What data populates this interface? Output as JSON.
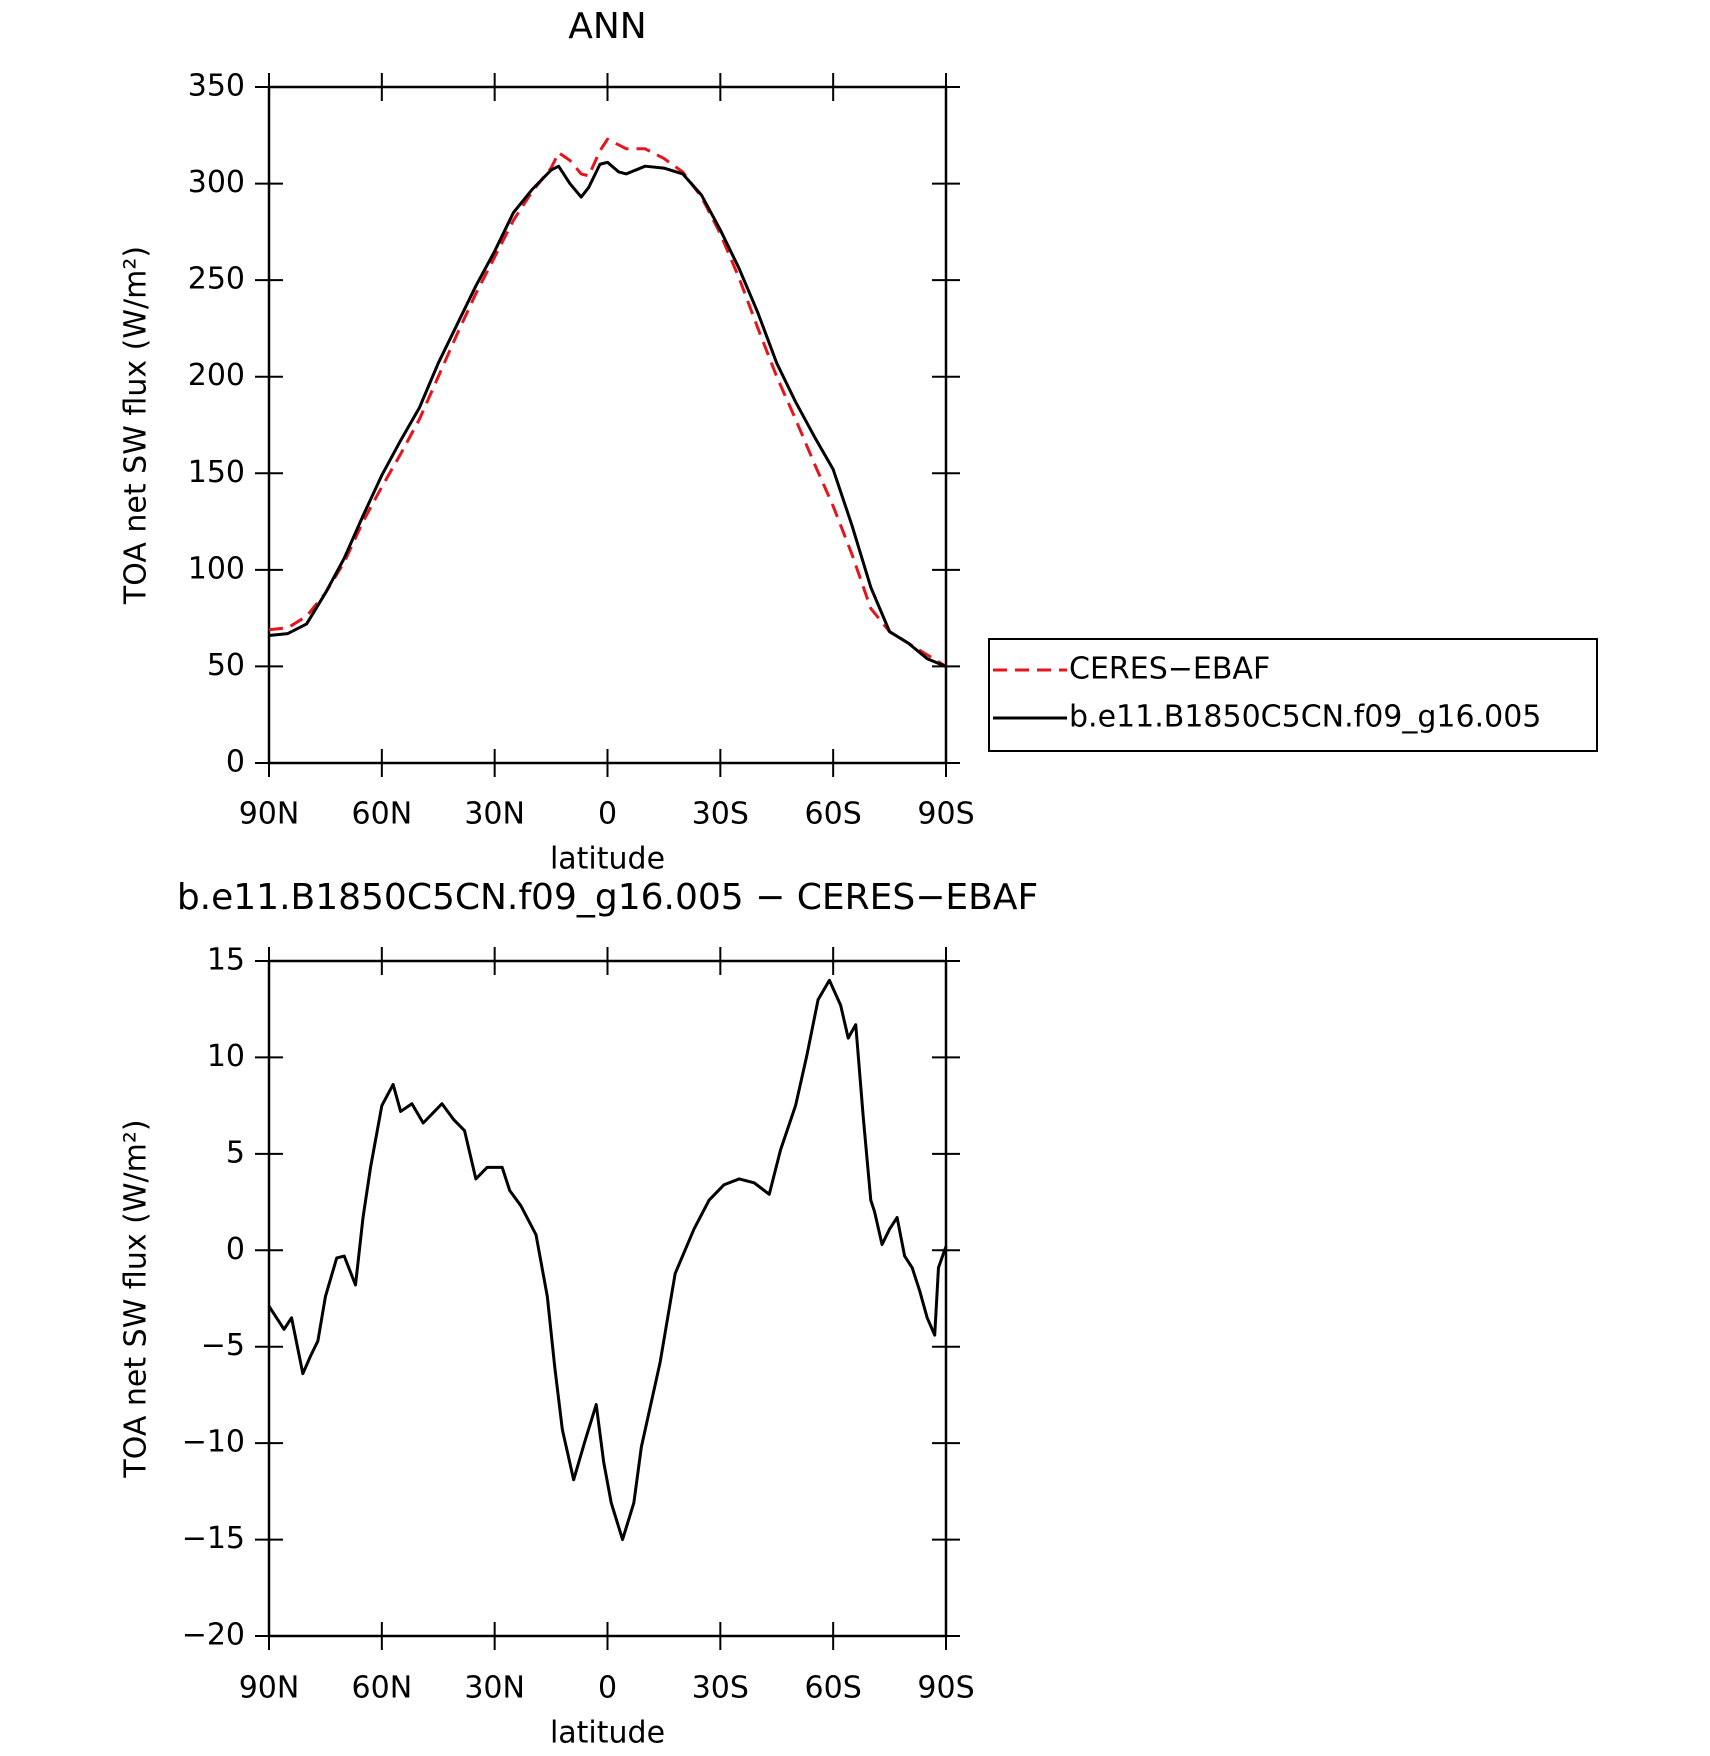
{
  "chart_data": [
    {
      "type": "line",
      "title": "ANN",
      "xlabel": "latitude",
      "ylabel": "TOA net SW flux (W/m²)",
      "x": [
        90,
        85,
        80,
        75,
        70,
        65,
        60,
        55,
        50,
        45,
        40,
        35,
        30,
        25,
        20,
        15,
        13,
        10,
        7,
        5,
        2,
        0,
        -3,
        -5,
        -10,
        -15,
        -20,
        -25,
        -30,
        -35,
        -40,
        -45,
        -50,
        -55,
        -60,
        -65,
        -70,
        -75,
        -80,
        -85,
        -90
      ],
      "series": [
        {
          "name": "CERES−EBAF",
          "color": "#e8141b",
          "dashed": true,
          "values": [
            69,
            70,
            76,
            88,
            104,
            125,
            143,
            160,
            178,
            200,
            222,
            243,
            262,
            281,
            296,
            308,
            316,
            312,
            305,
            304,
            317,
            323,
            320,
            318,
            318,
            313,
            306,
            293,
            274,
            251,
            225,
            200,
            178,
            155,
            133,
            108,
            80,
            68,
            62,
            56,
            50
          ]
        },
        {
          "name": "b.e11.B1850C5CN.f09_g16.005",
          "color": "#000000",
          "dashed": false,
          "values": [
            66,
            67,
            72,
            88,
            106,
            128,
            149,
            167,
            184,
            207,
            227,
            247,
            265,
            285,
            297,
            307,
            309,
            300,
            293,
            298,
            310,
            311,
            306,
            305,
            309,
            308,
            305,
            294,
            276,
            256,
            233,
            207,
            187,
            169,
            152,
            123,
            91,
            68,
            62,
            54,
            50
          ]
        }
      ],
      "xlim": [
        90,
        -90
      ],
      "xticks": [
        {
          "value": 90,
          "label": "90N"
        },
        {
          "value": 60,
          "label": "60N"
        },
        {
          "value": 30,
          "label": "30N"
        },
        0,
        {
          "value": -30,
          "label": "30S"
        },
        {
          "value": -60,
          "label": "60S"
        },
        {
          "value": -90,
          "label": "90S"
        }
      ],
      "ylim": [
        0,
        350
      ],
      "yticks": [
        0,
        50,
        100,
        150,
        200,
        250,
        300,
        350
      ],
      "legend": "right"
    },
    {
      "type": "line",
      "title": "b.e11.B1850C5CN.f09_g16.005 − CERES−EBAF",
      "xlabel": "latitude",
      "ylabel": "TOA net SW flux (W/m²)",
      "x": [
        90,
        86,
        84,
        81,
        79,
        77,
        75,
        72,
        70,
        67,
        65,
        63,
        60,
        57,
        55,
        52,
        49,
        44,
        41,
        38,
        35,
        32,
        28,
        26,
        23,
        19,
        16,
        14,
        12,
        9,
        6,
        3,
        1,
        -1,
        -4,
        -7,
        -9,
        -14,
        -18,
        -23,
        -27,
        -31,
        -35,
        -39,
        -43,
        -46,
        -50,
        -53,
        -56,
        -59,
        -62,
        -64,
        -66,
        -68,
        -70,
        -71,
        -73,
        -75,
        -77,
        -79,
        -81,
        -83,
        -85,
        -87,
        -88,
        -90
      ],
      "series": [
        {
          "color": "#000000",
          "dashed": false,
          "values": [
            -2.9,
            -4.1,
            -3.5,
            -6.4,
            -5.5,
            -4.7,
            -2.4,
            -0.4,
            -0.3,
            -1.8,
            1.7,
            4.3,
            7.5,
            8.6,
            7.2,
            7.6,
            6.6,
            7.6,
            6.8,
            6.2,
            3.7,
            4.3,
            4.3,
            3.1,
            2.3,
            0.8,
            -2.4,
            -6.1,
            -9.3,
            -11.9,
            -9.9,
            -8.0,
            -11,
            -13.1,
            -15,
            -13.1,
            -10.2,
            -5.8,
            -1.2,
            1.1,
            2.6,
            3.4,
            3.7,
            3.5,
            2.9,
            5.2,
            7.5,
            10.1,
            13.0,
            14.0,
            12.7,
            11.0,
            11.7,
            6.9,
            2.6,
            2.0,
            0.3,
            1.1,
            1.7,
            -0.3,
            -0.9,
            -2.1,
            -3.5,
            -4.4,
            -0.9,
            0.2
          ]
        }
      ],
      "xlim": [
        90,
        -90
      ],
      "xticks": [
        {
          "value": 90,
          "label": "90N"
        },
        {
          "value": 60,
          "label": "60N"
        },
        {
          "value": 30,
          "label": "30N"
        },
        0,
        {
          "value": -30,
          "label": "30S"
        },
        {
          "value": -60,
          "label": "60S"
        },
        {
          "value": -90,
          "label": "90S"
        }
      ],
      "ylim": [
        -20,
        15
      ],
      "yticks": [
        {
          "value": -20,
          "label": "−20"
        },
        {
          "value": -15,
          "label": "−15"
        },
        {
          "value": -10,
          "label": "−10"
        },
        {
          "value": -5,
          "label": "−5"
        },
        0,
        5,
        10,
        15
      ]
    }
  ]
}
